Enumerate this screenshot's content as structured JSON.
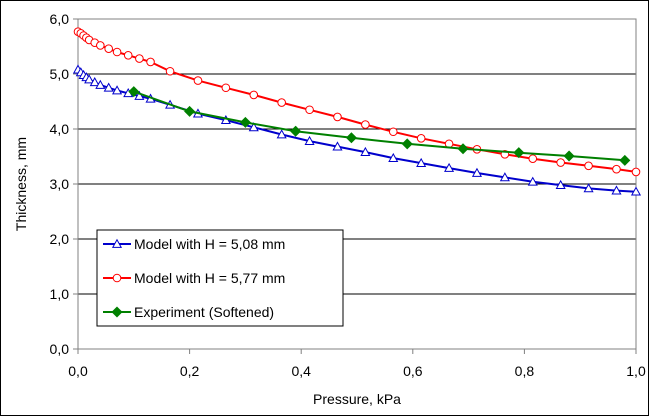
{
  "chart_data": {
    "type": "line",
    "title": "",
    "xlabel": "Pressure, kPa",
    "ylabel": "Thickness, mm",
    "xlim": [
      0,
      1.0
    ],
    "ylim": [
      0,
      6.0
    ],
    "x_ticks": [
      "0,0",
      "0,2",
      "0,4",
      "0,6",
      "0,8",
      "1,0"
    ],
    "y_ticks": [
      "0,0",
      "1,0",
      "2,0",
      "3,0",
      "4,0",
      "5,0",
      "6,0"
    ],
    "grid": "horizontal",
    "legend_position": "bottom-left",
    "series": [
      {
        "name": "Model with H = 5,08 mm",
        "color": "#0000CC",
        "marker": "triangle-open",
        "x": [
          0.0,
          0.005,
          0.01,
          0.015,
          0.02,
          0.03,
          0.04,
          0.055,
          0.07,
          0.09,
          0.11,
          0.13,
          0.165,
          0.215,
          0.265,
          0.315,
          0.365,
          0.415,
          0.465,
          0.515,
          0.565,
          0.615,
          0.665,
          0.715,
          0.765,
          0.815,
          0.865,
          0.915,
          0.965,
          1.0
        ],
        "y": [
          5.08,
          5.03,
          4.98,
          4.94,
          4.9,
          4.85,
          4.8,
          4.75,
          4.7,
          4.65,
          4.6,
          4.55,
          4.44,
          4.28,
          4.16,
          4.03,
          3.9,
          3.78,
          3.68,
          3.58,
          3.47,
          3.38,
          3.29,
          3.2,
          3.12,
          3.04,
          2.98,
          2.92,
          2.88,
          2.86
        ]
      },
      {
        "name": "Model with H = 5,77 mm",
        "color": "#FF0000",
        "marker": "circle-open",
        "x": [
          0.0,
          0.005,
          0.01,
          0.015,
          0.02,
          0.03,
          0.04,
          0.055,
          0.07,
          0.09,
          0.11,
          0.13,
          0.165,
          0.215,
          0.265,
          0.315,
          0.365,
          0.415,
          0.465,
          0.515,
          0.565,
          0.615,
          0.665,
          0.715,
          0.765,
          0.815,
          0.865,
          0.915,
          0.965,
          1.0
        ],
        "y": [
          5.77,
          5.74,
          5.7,
          5.66,
          5.62,
          5.57,
          5.52,
          5.46,
          5.4,
          5.34,
          5.28,
          5.22,
          5.05,
          4.88,
          4.75,
          4.62,
          4.48,
          4.35,
          4.22,
          4.08,
          3.95,
          3.83,
          3.73,
          3.63,
          3.54,
          3.46,
          3.39,
          3.33,
          3.27,
          3.22
        ]
      },
      {
        "name": "Experiment (Softened)",
        "color": "#008000",
        "marker": "diamond-filled",
        "x": [
          0.1,
          0.2,
          0.3,
          0.39,
          0.49,
          0.59,
          0.69,
          0.79,
          0.88,
          0.98
        ],
        "y": [
          4.68,
          4.32,
          4.12,
          3.96,
          3.84,
          3.73,
          3.64,
          3.57,
          3.51,
          3.43
        ]
      }
    ]
  }
}
